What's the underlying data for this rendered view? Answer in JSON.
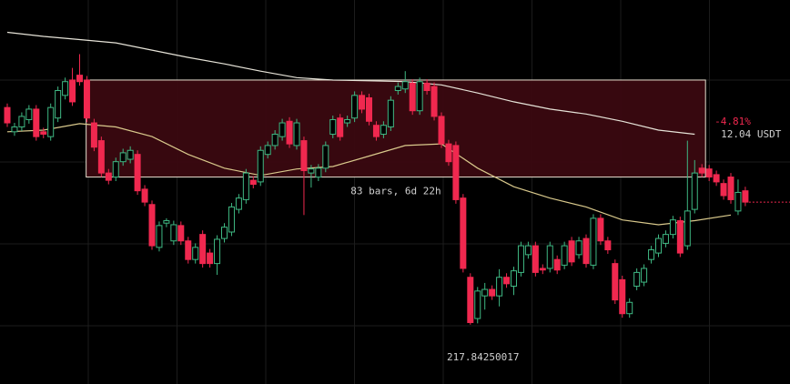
{
  "chart_data": {
    "type": "candlestick",
    "ylim": [
      210.5,
      258
    ],
    "up_color": "#3fb883",
    "down_color": "#f0284f",
    "candles": [
      [
        244.7,
        245.2,
        242.3,
        242.8
      ],
      [
        241.7,
        242.8,
        241.2,
        242.3
      ],
      [
        242.3,
        244.1,
        241.8,
        243.6
      ],
      [
        243.2,
        245.0,
        242.7,
        244.5
      ],
      [
        244.5,
        245.0,
        240.6,
        241.1
      ],
      [
        241.7,
        242.2,
        240.9,
        241.4
      ],
      [
        241.1,
        245.2,
        240.6,
        244.7
      ],
      [
        243.4,
        247.3,
        242.9,
        246.8
      ],
      [
        246.2,
        248.4,
        245.7,
        247.9
      ],
      [
        248.1,
        249.6,
        244.9,
        245.4
      ],
      [
        248.7,
        251.3,
        247.4,
        247.9
      ],
      [
        248.1,
        248.6,
        242.9,
        243.4
      ],
      [
        242.8,
        243.3,
        239.3,
        239.8
      ],
      [
        240.6,
        241.1,
        236.1,
        236.6
      ],
      [
        236.6,
        237.1,
        235.2,
        235.7
      ],
      [
        236.1,
        238.5,
        235.6,
        238.0
      ],
      [
        238.0,
        239.6,
        237.5,
        239.1
      ],
      [
        238.3,
        239.9,
        237.8,
        239.4
      ],
      [
        238.9,
        239.4,
        233.9,
        234.4
      ],
      [
        234.6,
        235.1,
        232.5,
        233.0
      ],
      [
        232.7,
        233.2,
        227.1,
        227.6
      ],
      [
        227.4,
        230.6,
        226.9,
        230.1
      ],
      [
        230.4,
        231.0,
        229.9,
        230.7
      ],
      [
        228.2,
        230.7,
        227.7,
        230.2
      ],
      [
        230.1,
        230.6,
        227.7,
        228.2
      ],
      [
        228.2,
        228.7,
        225.4,
        225.9
      ],
      [
        225.9,
        227.9,
        225.4,
        227.4
      ],
      [
        229.0,
        229.5,
        224.9,
        225.4
      ],
      [
        226.7,
        227.2,
        224.9,
        225.4
      ],
      [
        225.4,
        228.9,
        224.0,
        228.4
      ],
      [
        228.5,
        230.4,
        228.0,
        229.9
      ],
      [
        229.3,
        232.9,
        228.8,
        232.4
      ],
      [
        232.1,
        234.0,
        231.6,
        233.5
      ],
      [
        233.3,
        237.1,
        232.8,
        236.6
      ],
      [
        235.7,
        236.2,
        234.7,
        235.2
      ],
      [
        235.5,
        239.9,
        235.0,
        239.4
      ],
      [
        238.9,
        240.5,
        238.4,
        240.0
      ],
      [
        240.0,
        241.9,
        239.5,
        241.4
      ],
      [
        241.1,
        243.3,
        240.6,
        242.8
      ],
      [
        243.0,
        243.5,
        239.7,
        240.2
      ],
      [
        240.0,
        243.3,
        239.5,
        242.8
      ],
      [
        240.6,
        241.1,
        231.4,
        236.9
      ],
      [
        236.6,
        237.6,
        234.8,
        237.1
      ],
      [
        236.1,
        237.7,
        235.6,
        237.2
      ],
      [
        237.2,
        240.5,
        236.7,
        240.0
      ],
      [
        241.4,
        243.7,
        240.9,
        243.2
      ],
      [
        243.4,
        243.9,
        240.6,
        241.1
      ],
      [
        242.8,
        243.7,
        242.3,
        243.2
      ],
      [
        243.4,
        246.7,
        242.9,
        246.2
      ],
      [
        246.2,
        246.7,
        244.0,
        244.5
      ],
      [
        245.9,
        246.4,
        242.5,
        243.0
      ],
      [
        242.5,
        243.0,
        240.6,
        241.1
      ],
      [
        241.4,
        243.0,
        240.9,
        242.5
      ],
      [
        242.3,
        246.1,
        241.8,
        245.6
      ],
      [
        246.8,
        247.8,
        246.3,
        247.3
      ],
      [
        247.0,
        249.2,
        246.5,
        247.9
      ],
      [
        247.7,
        248.2,
        243.8,
        244.3
      ],
      [
        244.3,
        248.4,
        243.8,
        247.9
      ],
      [
        247.7,
        248.2,
        246.3,
        246.8
      ],
      [
        247.3,
        247.8,
        243.1,
        243.6
      ],
      [
        243.6,
        244.1,
        239.7,
        240.2
      ],
      [
        240.2,
        240.7,
        237.5,
        238.0
      ],
      [
        240.0,
        240.5,
        232.8,
        233.3
      ],
      [
        233.5,
        234.0,
        224.3,
        224.8
      ],
      [
        223.7,
        224.2,
        217.84,
        218.1
      ],
      [
        218.6,
        222.5,
        218.0,
        222.0
      ],
      [
        221.4,
        223.0,
        219.7,
        222.2
      ],
      [
        222.2,
        222.7,
        220.9,
        221.4
      ],
      [
        221.4,
        224.7,
        220.1,
        223.7
      ],
      [
        223.7,
        224.2,
        222.4,
        222.9
      ],
      [
        222.6,
        225.0,
        221.5,
        224.5
      ],
      [
        224.3,
        228.1,
        223.8,
        227.6
      ],
      [
        226.5,
        228.1,
        226.0,
        227.6
      ],
      [
        227.6,
        228.1,
        223.8,
        224.3
      ],
      [
        224.8,
        225.3,
        224.1,
        224.6
      ],
      [
        224.8,
        228.1,
        224.3,
        227.6
      ],
      [
        225.9,
        226.4,
        224.1,
        224.6
      ],
      [
        225.2,
        228.1,
        224.7,
        227.6
      ],
      [
        228.2,
        228.7,
        225.1,
        225.6
      ],
      [
        226.5,
        228.7,
        226.0,
        228.2
      ],
      [
        228.5,
        229.0,
        224.9,
        225.4
      ],
      [
        225.2,
        231.5,
        224.7,
        231.0
      ],
      [
        231.0,
        231.5,
        227.7,
        228.2
      ],
      [
        228.2,
        228.7,
        226.6,
        227.1
      ],
      [
        225.4,
        225.9,
        220.4,
        220.9
      ],
      [
        223.4,
        223.9,
        218.7,
        219.2
      ],
      [
        219.2,
        221.1,
        218.7,
        220.6
      ],
      [
        222.6,
        224.8,
        222.1,
        224.3
      ],
      [
        223.1,
        225.3,
        222.6,
        224.8
      ],
      [
        225.9,
        227.6,
        225.4,
        227.1
      ],
      [
        226.7,
        229.0,
        226.2,
        228.5
      ],
      [
        227.9,
        229.5,
        227.4,
        229.0
      ],
      [
        229.0,
        231.3,
        228.5,
        230.8
      ],
      [
        230.7,
        231.2,
        226.2,
        226.7
      ],
      [
        227.6,
        240.6,
        227.1,
        231.9
      ],
      [
        232.1,
        238.2,
        231.6,
        236.6
      ],
      [
        237.2,
        237.7,
        236.1,
        236.6
      ],
      [
        237.1,
        237.6,
        235.6,
        236.1
      ],
      [
        236.4,
        236.9,
        235.0,
        235.5
      ],
      [
        235.3,
        235.8,
        233.3,
        233.8
      ],
      [
        236.1,
        236.6,
        232.8,
        233.3
      ],
      [
        231.9,
        235.8,
        231.4,
        234.2
      ],
      [
        234.4,
        234.9,
        232.5,
        233.0
      ]
    ],
    "lines": [
      {
        "color": "#e6e3d8",
        "x": [
          0,
          5,
          10,
          15,
          20,
          25,
          30,
          35,
          40,
          45,
          50,
          55,
          60,
          65,
          70,
          75,
          80,
          85,
          90,
          95
        ],
        "values": [
          254.0,
          253.5,
          253.1,
          252.7,
          251.8,
          250.9,
          250.1,
          249.2,
          248.4,
          248.1,
          248.0,
          247.9,
          247.5,
          246.5,
          245.4,
          244.5,
          243.9,
          243.0,
          241.9,
          241.4
        ]
      },
      {
        "color": "#d9c98c",
        "x": [
          0,
          5,
          10,
          15,
          20,
          25,
          30,
          35,
          40,
          45,
          50,
          55,
          60,
          65,
          70,
          75,
          80,
          85,
          90,
          95,
          100
        ],
        "values": [
          241.7,
          241.9,
          242.7,
          242.3,
          241.1,
          238.9,
          237.2,
          236.3,
          237.1,
          237.4,
          238.7,
          240.0,
          240.2,
          237.2,
          234.9,
          233.5,
          232.4,
          230.8,
          230.2,
          230.7,
          231.4
        ]
      }
    ],
    "range": {
      "from": 10.9,
      "to": 96.5,
      "high": 248.1,
      "low": 236.1,
      "change": "-4.81%",
      "amount": "12.04 USDT",
      "duration": "83 bars, 6d 22h",
      "fill": "#3a0810",
      "border": "#e8e0d0"
    },
    "low_label": "217.84250017",
    "last_price_color": "#f0284f"
  }
}
